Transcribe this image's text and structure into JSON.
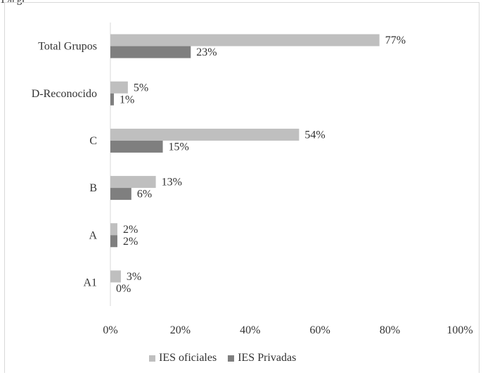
{
  "header_fragment": "1% gr",
  "chart_data": {
    "type": "bar",
    "orientation": "horizontal",
    "categories": [
      "Total Grupos",
      "D-Reconocido",
      "C",
      "B",
      "A",
      "A1"
    ],
    "series": [
      {
        "name": "IES oficiales",
        "values": [
          77,
          5,
          54,
          13,
          2,
          3
        ],
        "labels": [
          "77%",
          "5%",
          "54%",
          "13%",
          "2%",
          "3%"
        ],
        "color": "#bfbfbf"
      },
      {
        "name": "IES Privadas",
        "values": [
          23,
          1,
          15,
          6,
          2,
          0
        ],
        "labels": [
          "23%",
          "1%",
          "15%",
          "6%",
          "2%",
          "0%"
        ],
        "color": "#7f7f7f"
      }
    ],
    "xlim": [
      0,
      100
    ],
    "xticks": [
      0,
      20,
      40,
      60,
      80,
      100
    ],
    "xtick_labels": [
      "0%",
      "20%",
      "40%",
      "60%",
      "80%",
      "100%"
    ],
    "grid": false,
    "legend_position": "bottom"
  }
}
